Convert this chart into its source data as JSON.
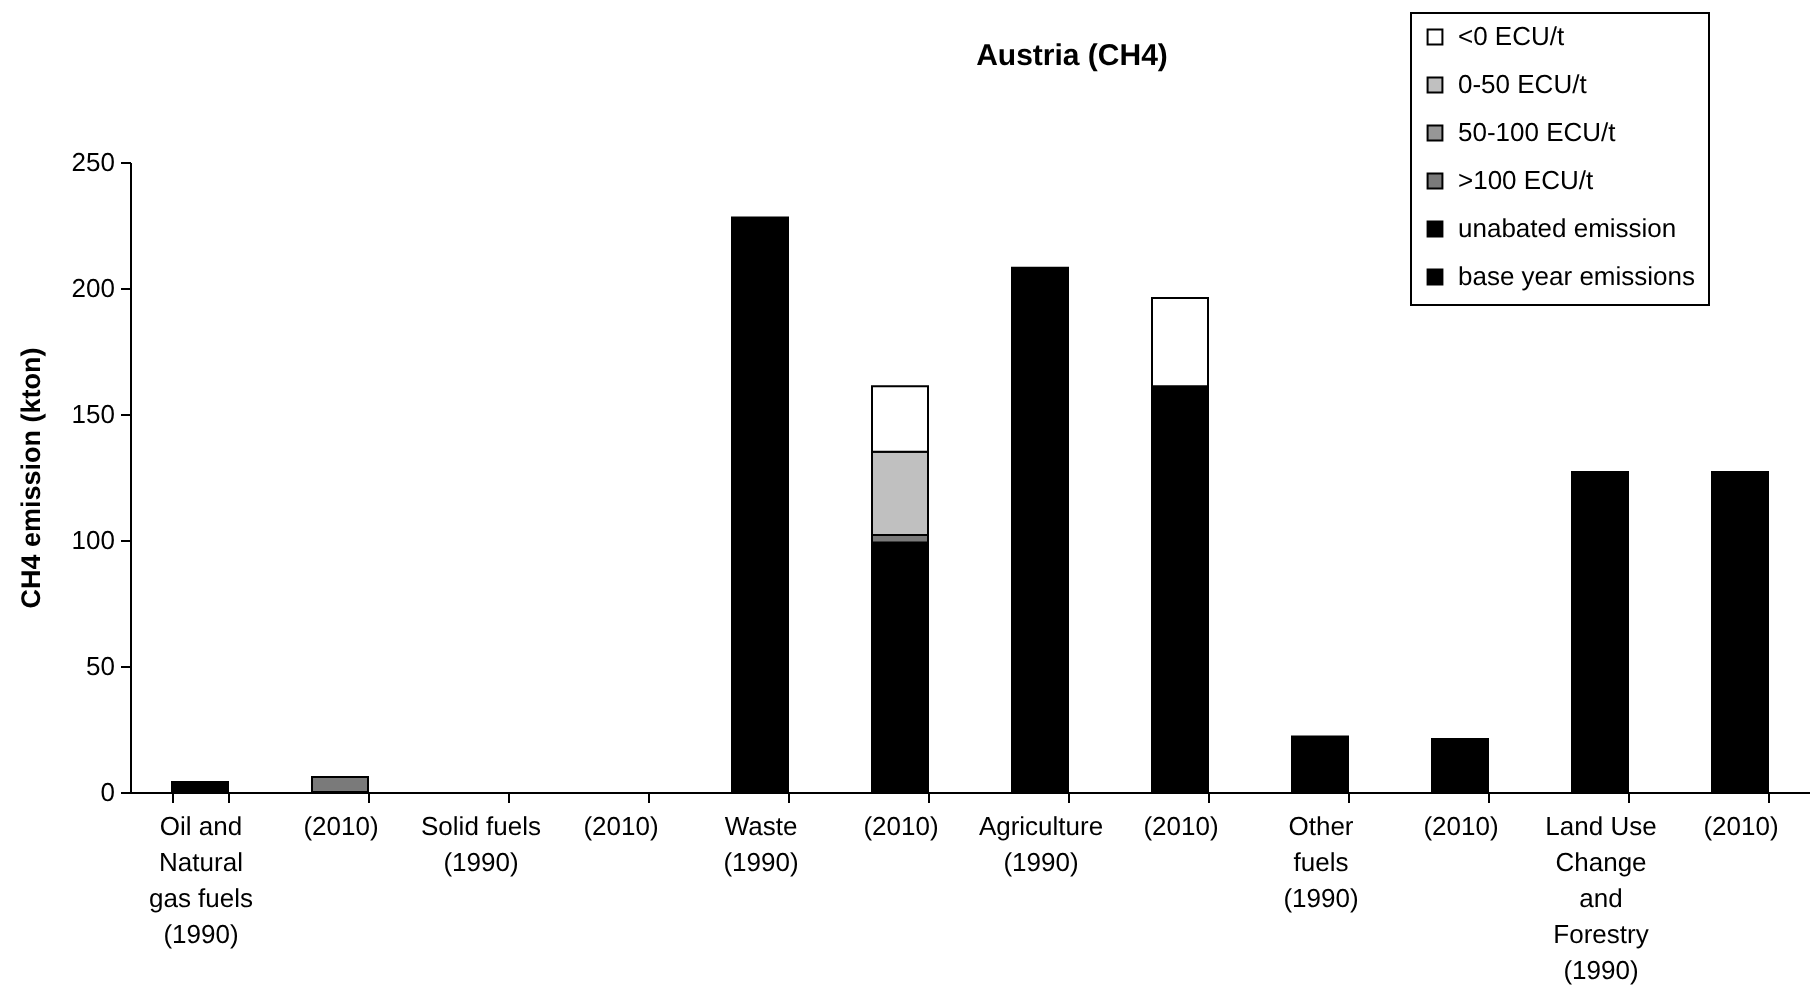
{
  "chart_data": {
    "type": "bar",
    "title": "Austria (CH4)",
    "ylabel": "CH4 emission (kton)",
    "categories": [
      "Oil and Natural gas fuels (1990)",
      "(2010)",
      "Solid fuels (1990)",
      "(2010)",
      "Waste (1990)",
      "(2010)",
      "Agriculture (1990)",
      "(2010)",
      "Other fuels (1990)",
      "(2010)",
      "Land Use Change and Forestry (1990)",
      "(2010)"
    ],
    "series": [
      {
        "name": "base year emissions",
        "color": "#000000",
        "values": [
          4,
          null,
          null,
          null,
          228,
          null,
          208,
          null,
          22,
          null,
          127,
          null
        ]
      },
      {
        "name": "unabated emission",
        "color": "#000000",
        "values": [
          null,
          null,
          null,
          null,
          null,
          99,
          null,
          161,
          null,
          21,
          null,
          127
        ]
      },
      {
        "name": ">100 ECU/t",
        "color": "#7a7a7a",
        "values": [
          null,
          6,
          null,
          null,
          null,
          3,
          null,
          null,
          null,
          null,
          null,
          null
        ]
      },
      {
        "name": "50-100 ECU/t",
        "color": "#969696",
        "values": [
          null,
          null,
          null,
          null,
          null,
          null,
          null,
          null,
          null,
          null,
          null,
          null
        ]
      },
      {
        "name": "0-50 ECU/t",
        "color": "#c0c0c0",
        "values": [
          null,
          null,
          null,
          null,
          null,
          33,
          null,
          null,
          null,
          null,
          null,
          null
        ]
      },
      {
        "name": "<0 ECU/t",
        "color": "#ffffff",
        "values": [
          null,
          null,
          null,
          null,
          null,
          26,
          null,
          35,
          null,
          null,
          null,
          null
        ]
      }
    ],
    "stacked": true,
    "ylim": [
      0,
      250
    ],
    "yticks": [
      0,
      50,
      100,
      150,
      200,
      250
    ],
    "legend": "top right"
  }
}
